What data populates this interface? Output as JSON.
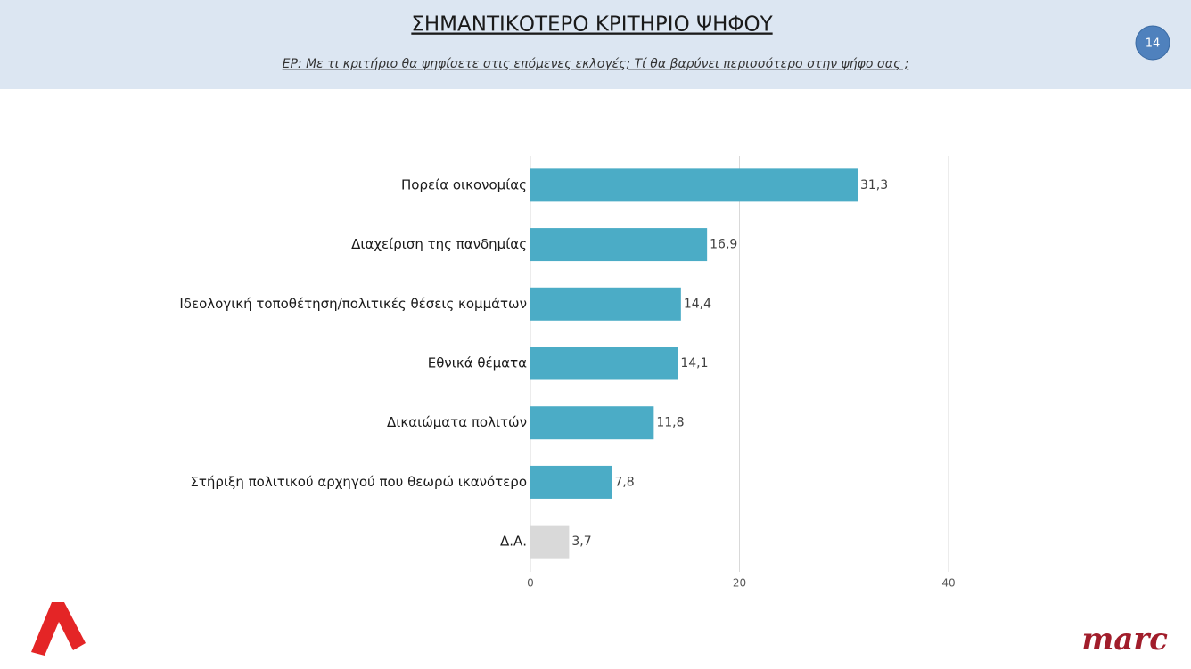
{
  "header": {
    "title": "ΣΗΜΑΝΤΙΚΟΤΕΡΟ ΚΡΙΤΗΡΙΟ ΨΗΦΟΥ",
    "subtitle": "ΕΡ:  Με τι κριτήριο θα ψηφίσετε στις επόμενες εκλογές; Τί θα βαρύνει περισσότερο στην ψήφο σας ;",
    "page_number": "14"
  },
  "footer": {
    "brand": "marc"
  },
  "chart_data": {
    "type": "bar",
    "orientation": "horizontal",
    "categories": [
      "Πορεία οικονομίας",
      "Διαχείριση της πανδημίας",
      "Ιδεολογική τοποθέτηση/πολιτικές θέσεις κομμάτων",
      "Εθνικά θέματα",
      "Δικαιώματα πολιτών",
      "Στήριξη πολιτικού αρχηγού που θεωρώ ικανότερο",
      "Δ.Α."
    ],
    "values": [
      31.3,
      16.9,
      14.4,
      14.1,
      11.8,
      7.8,
      3.7
    ],
    "value_labels": [
      "31,3",
      "16,9",
      "14,4",
      "14,1",
      "11,8",
      "7,8",
      "3,7"
    ],
    "colors": [
      "#4bacc6",
      "#4bacc6",
      "#4bacc6",
      "#4bacc6",
      "#4bacc6",
      "#4bacc6",
      "#d9d9d9"
    ],
    "xlim": [
      0,
      40
    ],
    "xticks": [
      0,
      20,
      40
    ],
    "grid": true
  }
}
